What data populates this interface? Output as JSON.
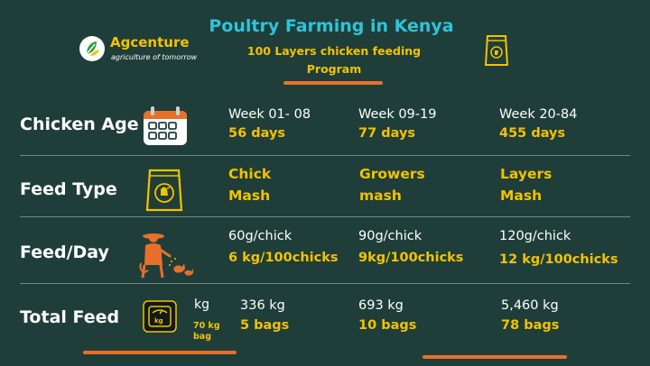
{
  "header": {
    "title": "Poultry Farming in Kenya",
    "subtitle": [
      "100 Layers chicken feeding",
      "Program"
    ],
    "logo_name": "Agcenture",
    "logo_tagline": "agriculture of tomorrow"
  },
  "rows": {
    "age": {
      "label": "Chicken Age",
      "icon": "calendar-icon",
      "cols": [
        {
          "top": "Week 01- 08",
          "bottom": "56 days"
        },
        {
          "top": "Week 09-19",
          "bottom": "77 days"
        },
        {
          "top": "Week 20-84",
          "bottom": "455 days"
        }
      ]
    },
    "feed_type": {
      "label": "Feed Type",
      "icon": "feed-bag-icon",
      "cols": [
        {
          "line1": "Chick",
          "line2": "Mash"
        },
        {
          "line1": "Growers",
          "line2": "mash"
        },
        {
          "line1": "Layers",
          "line2": "Mash"
        }
      ]
    },
    "feed_day": {
      "label": "Feed/Day",
      "icon": "farmer-feeding-chickens-icon",
      "cols": [
        {
          "top": "60g/chick",
          "bottom": "6 kg/100chicks"
        },
        {
          "top": "90g/chick",
          "bottom": "9kg/100chicks"
        },
        {
          "top": "120g/chick",
          "bottom": "12 kg/100chicks"
        }
      ]
    },
    "total": {
      "label": "Total Feed",
      "icon": "scale-icon",
      "unit": "kg",
      "bag_note": [
        "70 kg",
        "bag"
      ],
      "cols": [
        {
          "top": "336 kg",
          "bottom": "5 bags"
        },
        {
          "top": "693 kg",
          "bottom": "10 bags"
        },
        {
          "top": "5,460 kg",
          "bottom": "78 bags"
        }
      ]
    }
  },
  "colors": {
    "background": "#1f3e3a",
    "title": "#2ec4d8",
    "accent_yellow": "#f3c200",
    "accent_orange": "#e8702a",
    "text": "#ffffff"
  }
}
